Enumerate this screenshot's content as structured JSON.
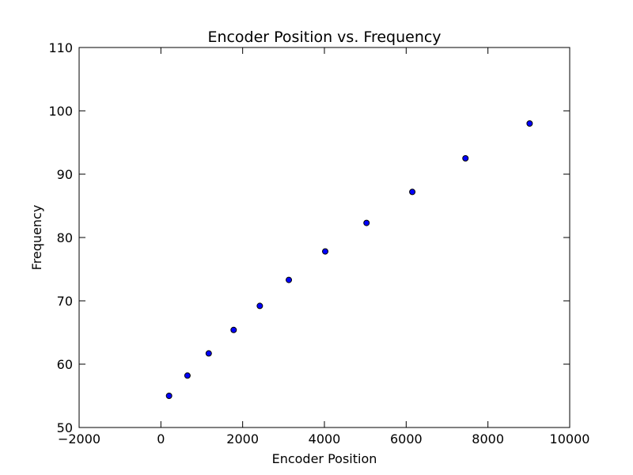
{
  "chart_data": {
    "type": "scatter",
    "title": "Encoder Position vs. Frequency",
    "xlabel": "Encoder Position",
    "ylabel": "Frequency",
    "xlim": [
      -2000,
      10000
    ],
    "ylim": [
      50,
      110
    ],
    "xticks": [
      -2000,
      0,
      2000,
      4000,
      6000,
      8000,
      10000
    ],
    "xtick_labels": [
      "−2000",
      "0",
      "2000",
      "4000",
      "6000",
      "8000",
      "10000"
    ],
    "yticks": [
      50,
      60,
      70,
      80,
      90,
      100,
      110
    ],
    "ytick_labels": [
      "50",
      "60",
      "70",
      "80",
      "90",
      "100",
      "110"
    ],
    "grid": false,
    "marker_color": "#0000ff",
    "marker_edge": "#000000",
    "points": [
      {
        "x": 200,
        "y": 55.0
      },
      {
        "x": 650,
        "y": 58.2
      },
      {
        "x": 1170,
        "y": 61.7
      },
      {
        "x": 1780,
        "y": 65.4
      },
      {
        "x": 2420,
        "y": 69.2
      },
      {
        "x": 3130,
        "y": 73.3
      },
      {
        "x": 4020,
        "y": 77.8
      },
      {
        "x": 5030,
        "y": 82.3
      },
      {
        "x": 6150,
        "y": 87.2
      },
      {
        "x": 7450,
        "y": 92.5
      },
      {
        "x": 9020,
        "y": 98.0
      }
    ]
  }
}
